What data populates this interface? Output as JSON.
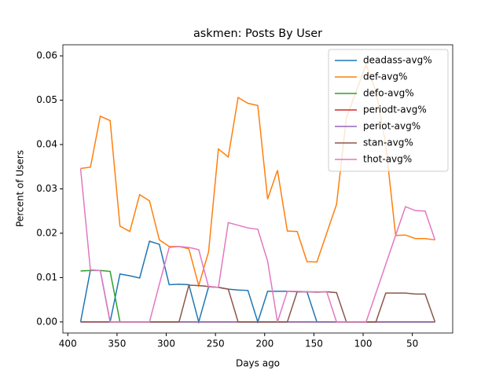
{
  "chart_data": {
    "type": "line",
    "title": "askmen: Posts By User",
    "x_label": "Days ago",
    "y_label": "Percent of Users",
    "x": [
      387,
      377,
      367,
      357,
      347,
      337,
      327,
      317,
      307,
      297,
      287,
      277,
      267,
      257,
      247,
      237,
      227,
      217,
      207,
      197,
      187,
      177,
      167,
      157,
      147,
      137,
      127,
      117,
      107,
      97,
      87,
      77,
      67,
      57,
      47,
      37,
      27
    ],
    "series": [
      {
        "name": "deadass-avg%",
        "color": "#1f77b4",
        "values": [
          0,
          0.0117,
          0.0116,
          0,
          0.0108,
          0.0104,
          0.0099,
          0.0182,
          0.0175,
          0.0084,
          0.0085,
          0.0084,
          0,
          0.0079,
          0.0078,
          0.0074,
          0.0072,
          0.0071,
          0,
          0.0069,
          0.0069,
          0.0069,
          0.0068,
          0.0068,
          0,
          0,
          0,
          0,
          0,
          0,
          0,
          0,
          0,
          0,
          0,
          0,
          0
        ]
      },
      {
        "name": "def-avg%",
        "color": "#ff7f0e",
        "values": [
          0.0346,
          0.0349,
          0.0464,
          0.0454,
          0.0216,
          0.0204,
          0.0287,
          0.0273,
          0.0185,
          0.017,
          0.017,
          0.0165,
          0.0082,
          0.0158,
          0.039,
          0.0372,
          0.0506,
          0.0493,
          0.0488,
          0.0277,
          0.0342,
          0.0205,
          0.0204,
          0.0136,
          0.0135,
          0.02,
          0.0265,
          0.046,
          0.052,
          0.058,
          0.052,
          0.04,
          0.0195,
          0.0196,
          0.0188,
          0.0188,
          0.0185
        ]
      },
      {
        "name": "defo-avg%",
        "color": "#2ca02c",
        "values": [
          0.0115,
          0.0116,
          0.0116,
          0.0114,
          0,
          0,
          0,
          0,
          0,
          0,
          0,
          0,
          0,
          0,
          0,
          0,
          0,
          0,
          0,
          0,
          0,
          0,
          0,
          0,
          0,
          0,
          0,
          0,
          0,
          0,
          0,
          0,
          0,
          0,
          0,
          0,
          0
        ]
      },
      {
        "name": "periodt-avg%",
        "color": "#d62728",
        "values": [
          0,
          0,
          0,
          0,
          0,
          0,
          0,
          0,
          0,
          0,
          0,
          0,
          0,
          0,
          0,
          0,
          0,
          0,
          0,
          0,
          0,
          0,
          0,
          0,
          0,
          0,
          0,
          0,
          0,
          0,
          0,
          0,
          0,
          0,
          0,
          0,
          0
        ]
      },
      {
        "name": "periot-avg%",
        "color": "#9467bd",
        "values": [
          0,
          0,
          0,
          0,
          0,
          0,
          0,
          0,
          0,
          0,
          0,
          0,
          0,
          0,
          0,
          0,
          0,
          0,
          0,
          0,
          0,
          0,
          0,
          0,
          0,
          0,
          0,
          0,
          0,
          0,
          0,
          0,
          0,
          0,
          0,
          0,
          0
        ]
      },
      {
        "name": "stan-avg%",
        "color": "#8c564b",
        "values": [
          0,
          0,
          0,
          0,
          0,
          0,
          0,
          0,
          0,
          0,
          0,
          0.0083,
          0.0082,
          0.008,
          0.0078,
          0.0074,
          0,
          0,
          0,
          0,
          0,
          0,
          0.0068,
          0.0068,
          0.0067,
          0.0068,
          0.0066,
          0,
          0,
          0,
          0,
          0.0065,
          0.0065,
          0.0065,
          0.0063,
          0.0063,
          0
        ]
      },
      {
        "name": "thot-avg%",
        "color": "#e377c2",
        "values": [
          0.0346,
          0.0117,
          0.0116,
          0,
          0,
          0,
          0,
          0,
          0.0085,
          0.0168,
          0.017,
          0.0168,
          0.0163,
          0.0079,
          0.0078,
          0.0224,
          0.0218,
          0.0212,
          0.0209,
          0.0137,
          0,
          0.0069,
          0.0069,
          0.0068,
          0.0068,
          0.0068,
          0,
          0,
          0,
          0,
          0.0065,
          0.013,
          0.0195,
          0.026,
          0.0251,
          0.025,
          0.0185
        ]
      }
    ],
    "xlim": [
      405,
      9
    ],
    "xticks": [
      400,
      350,
      300,
      250,
      200,
      150,
      100,
      50
    ],
    "ylim": [
      -0.0025,
      0.0625
    ],
    "yticks": [
      {
        "value": 0,
        "label": "0.00"
      },
      0.01,
      0.02,
      0.03,
      0.04,
      0.05,
      0.06
    ],
    "legend": "upper right"
  }
}
